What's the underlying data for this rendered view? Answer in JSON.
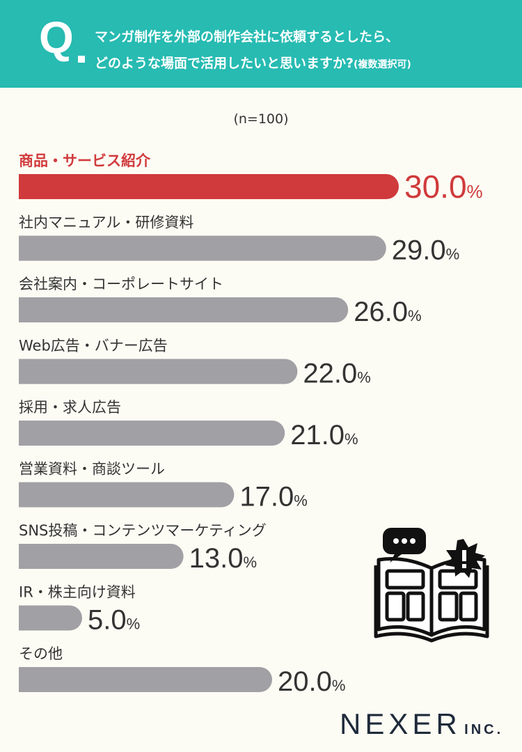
{
  "question": {
    "mark": "Q",
    "line1": "マンガ制作を外部の制作会社に依頼するとしたら、",
    "line2": "どのような場面で活用したいと思いますか?",
    "note": "(複数選択可)"
  },
  "sample_size": "(n=100)",
  "colors": {
    "header": "#27bbb2",
    "highlight": "#d03a3c",
    "bar": "#a0a0a5",
    "text": "#333333"
  },
  "chart_data": {
    "type": "bar",
    "orientation": "horizontal",
    "unit": "%",
    "categories": [
      "商品・サービス紹介",
      "社内マニュアル・研修資料",
      "会社案内・コーポレートサイト",
      "Web広告・バナー広告",
      "採用・求人広告",
      "営業資料・商談ツール",
      "SNS投稿・コンテンツマーケティング",
      "IR・株主向け資料",
      "その他"
    ],
    "values": [
      30.0,
      29.0,
      26.0,
      22.0,
      21.0,
      17.0,
      13.0,
      5.0,
      20.0
    ],
    "value_labels": [
      "30.0",
      "29.0",
      "26.0",
      "22.0",
      "21.0",
      "17.0",
      "13.0",
      "5.0",
      "20.0"
    ],
    "highlight_index": 0
  },
  "logo": {
    "main": "NEXER",
    "sub": "INC."
  },
  "illustration_icons": [
    "speech-bubble-icon",
    "open-book-manga-icon",
    "exclamation-burst-icon"
  ]
}
